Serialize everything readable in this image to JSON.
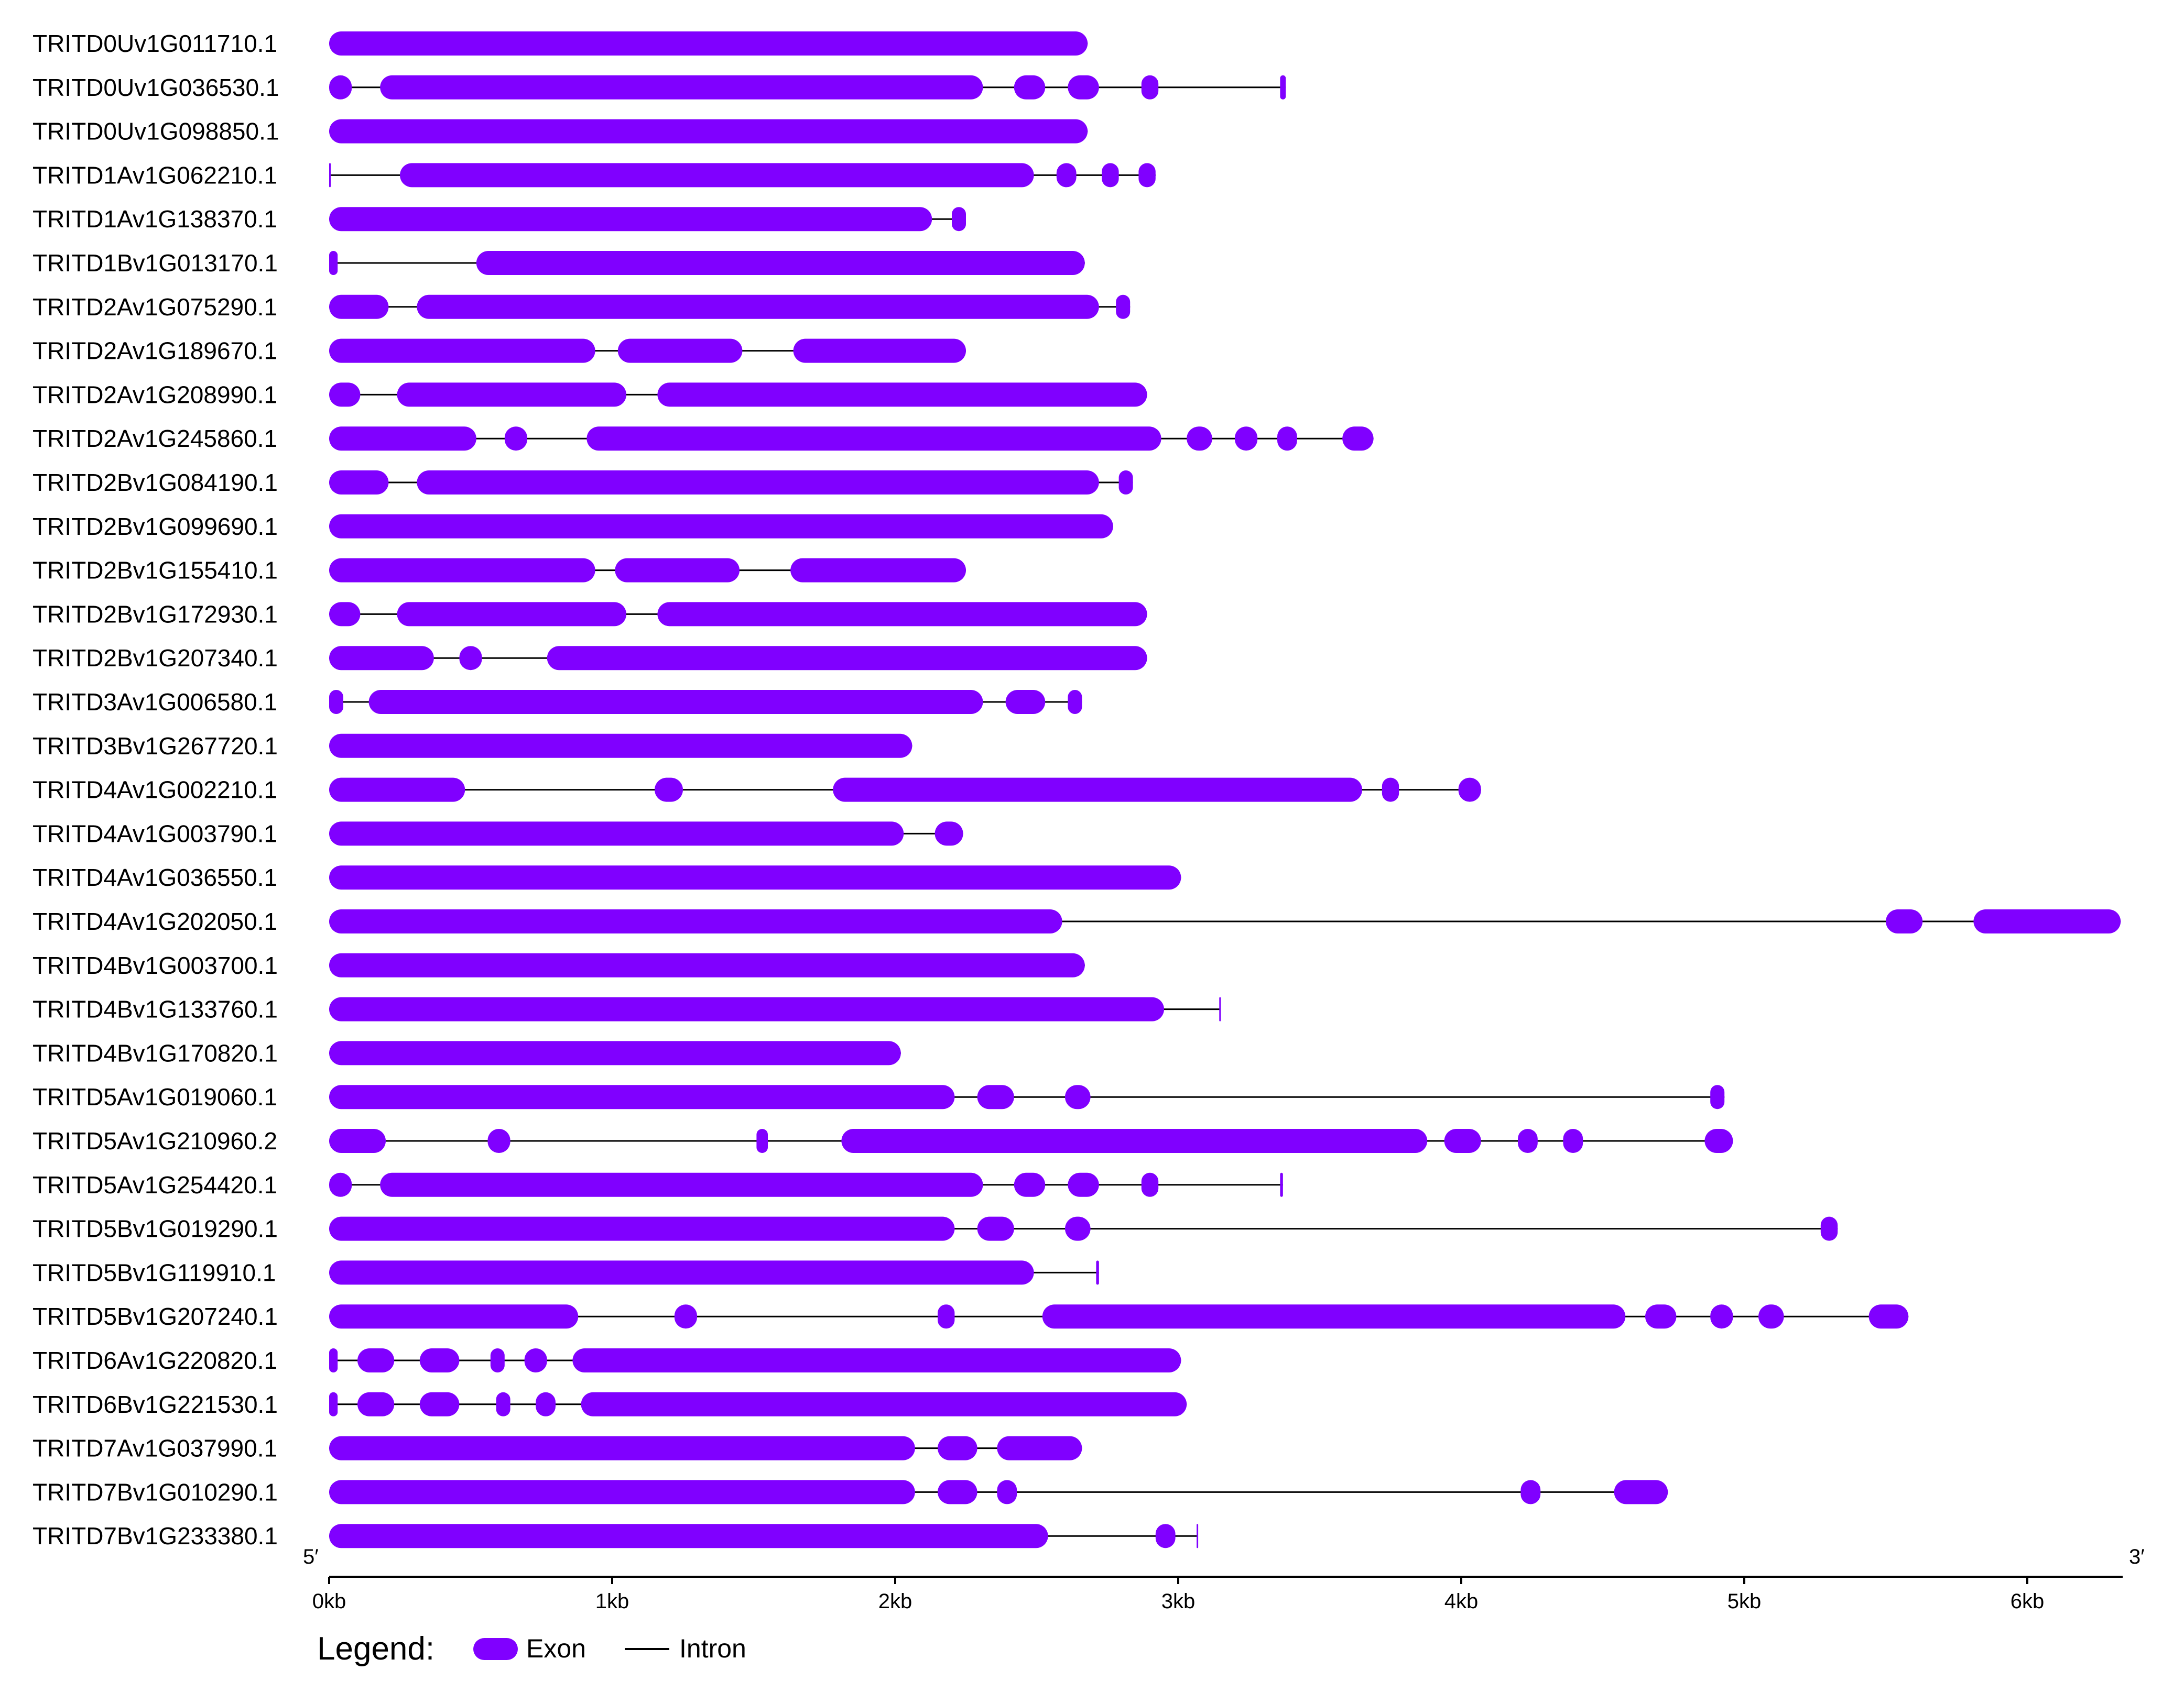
{
  "colors": {
    "exon": "#8000ff",
    "intron": "#000000"
  },
  "axis": {
    "unit": "kb",
    "xlim": [
      0,
      6.33
    ],
    "ticks": [
      0,
      1,
      2,
      3,
      4,
      5,
      6
    ],
    "tick_labels": [
      "0kb",
      "1kb",
      "2kb",
      "3kb",
      "4kb",
      "5kb",
      "6kb"
    ],
    "five_prime": "5′",
    "three_prime": "3′"
  },
  "legend": {
    "title": "Legend:",
    "exon": "Exon",
    "intron": "Intron"
  },
  "chart_data": {
    "type": "gene-structure",
    "x_unit": "kb",
    "genes": [
      {
        "name": "TRITD0Uv1G011710.1",
        "length": 2.68,
        "exons": [
          [
            0,
            2.68
          ]
        ]
      },
      {
        "name": "TRITD0Uv1G036530.1",
        "length": 3.38,
        "exons": [
          [
            0,
            0.08
          ],
          [
            0.18,
            2.31
          ],
          [
            2.42,
            2.53
          ],
          [
            2.61,
            2.72
          ],
          [
            2.87,
            2.93
          ],
          [
            3.36,
            3.38
          ]
        ]
      },
      {
        "name": "TRITD0Uv1G098850.1",
        "length": 2.68,
        "exons": [
          [
            0,
            2.68
          ]
        ]
      },
      {
        "name": "TRITD1Av1G062210.1",
        "length": 2.92,
        "exons": [
          [
            0,
            0.005
          ],
          [
            0.25,
            2.49
          ],
          [
            2.57,
            2.64
          ],
          [
            2.73,
            2.79
          ],
          [
            2.86,
            2.92
          ]
        ]
      },
      {
        "name": "TRITD1Av1G138370.1",
        "length": 2.25,
        "exons": [
          [
            0,
            2.13
          ],
          [
            2.2,
            2.25
          ]
        ]
      },
      {
        "name": "TRITD1Bv1G013170.1",
        "length": 2.67,
        "exons": [
          [
            0,
            0.03
          ],
          [
            0.52,
            2.67
          ]
        ]
      },
      {
        "name": "TRITD2Av1G075290.1",
        "length": 2.83,
        "exons": [
          [
            0,
            0.21
          ],
          [
            0.31,
            2.72
          ],
          [
            2.78,
            2.83
          ]
        ]
      },
      {
        "name": "TRITD2Av1G189670.1",
        "length": 2.25,
        "exons": [
          [
            0,
            0.94
          ],
          [
            1.02,
            1.46
          ],
          [
            1.64,
            2.25
          ]
        ]
      },
      {
        "name": "TRITD2Av1G208990.1",
        "length": 2.89,
        "exons": [
          [
            0,
            0.11
          ],
          [
            0.24,
            1.05
          ],
          [
            1.16,
            2.89
          ]
        ]
      },
      {
        "name": "TRITD2Av1G245860.1",
        "length": 3.69,
        "exons": [
          [
            0,
            0.52
          ],
          [
            0.62,
            0.7
          ],
          [
            0.91,
            2.94
          ],
          [
            3.03,
            3.12
          ],
          [
            3.2,
            3.28
          ],
          [
            3.35,
            3.42
          ],
          [
            3.58,
            3.69
          ]
        ]
      },
      {
        "name": "TRITD2Bv1G084190.1",
        "length": 2.84,
        "exons": [
          [
            0,
            0.21
          ],
          [
            0.31,
            2.72
          ],
          [
            2.79,
            2.84
          ]
        ]
      },
      {
        "name": "TRITD2Bv1G099690.1",
        "length": 2.77,
        "exons": [
          [
            0,
            2.77
          ]
        ]
      },
      {
        "name": "TRITD2Bv1G155410.1",
        "length": 2.25,
        "exons": [
          [
            0,
            0.94
          ],
          [
            1.01,
            1.45
          ],
          [
            1.63,
            2.25
          ]
        ]
      },
      {
        "name": "TRITD2Bv1G172930.1",
        "length": 2.89,
        "exons": [
          [
            0,
            0.11
          ],
          [
            0.24,
            1.05
          ],
          [
            1.16,
            2.89
          ]
        ]
      },
      {
        "name": "TRITD2Bv1G207340.1",
        "length": 2.89,
        "exons": [
          [
            0,
            0.37
          ],
          [
            0.46,
            0.54
          ],
          [
            0.77,
            2.89
          ]
        ]
      },
      {
        "name": "TRITD3Av1G006580.1",
        "length": 2.66,
        "exons": [
          [
            0,
            0.05
          ],
          [
            0.14,
            2.31
          ],
          [
            2.39,
            2.53
          ],
          [
            2.61,
            2.66
          ]
        ]
      },
      {
        "name": "TRITD3Bv1G267720.1",
        "length": 2.06,
        "exons": [
          [
            0,
            2.06
          ]
        ]
      },
      {
        "name": "TRITD4Av1G002210.1",
        "length": 4.07,
        "exons": [
          [
            0,
            0.48
          ],
          [
            1.15,
            1.25
          ],
          [
            1.78,
            3.65
          ],
          [
            3.72,
            3.78
          ],
          [
            3.99,
            4.07
          ]
        ]
      },
      {
        "name": "TRITD4Av1G003790.1",
        "length": 2.24,
        "exons": [
          [
            0,
            2.03
          ],
          [
            2.14,
            2.24
          ]
        ]
      },
      {
        "name": "TRITD4Av1G036550.1",
        "length": 3.01,
        "exons": [
          [
            0,
            3.01
          ]
        ]
      },
      {
        "name": "TRITD4Av1G202050.1",
        "length": 6.33,
        "exons": [
          [
            0,
            2.59
          ],
          [
            5.5,
            5.63
          ],
          [
            5.81,
            6.33
          ]
        ]
      },
      {
        "name": "TRITD4Bv1G003700.1",
        "length": 2.67,
        "exons": [
          [
            0,
            2.67
          ]
        ]
      },
      {
        "name": "TRITD4Bv1G133760.1",
        "length": 3.15,
        "exons": [
          [
            0,
            2.95
          ],
          [
            3.145,
            3.15
          ]
        ]
      },
      {
        "name": "TRITD4Bv1G170820.1",
        "length": 2.02,
        "exons": [
          [
            0,
            2.02
          ]
        ]
      },
      {
        "name": "TRITD5Av1G019060.1",
        "length": 4.93,
        "exons": [
          [
            0,
            2.21
          ],
          [
            2.29,
            2.42
          ],
          [
            2.6,
            2.69
          ],
          [
            4.88,
            4.93
          ]
        ]
      },
      {
        "name": "TRITD5Av1G210960.2",
        "length": 4.96,
        "exons": [
          [
            0,
            0.2
          ],
          [
            0.56,
            0.64
          ],
          [
            1.51,
            1.55
          ],
          [
            1.81,
            3.88
          ],
          [
            3.94,
            4.07
          ],
          [
            4.2,
            4.27
          ],
          [
            4.36,
            4.43
          ],
          [
            4.86,
            4.96
          ]
        ]
      },
      {
        "name": "TRITD5Av1G254420.1",
        "length": 3.37,
        "exons": [
          [
            0,
            0.08
          ],
          [
            0.18,
            2.31
          ],
          [
            2.42,
            2.53
          ],
          [
            2.61,
            2.72
          ],
          [
            2.87,
            2.93
          ],
          [
            3.36,
            3.37
          ]
        ]
      },
      {
        "name": "TRITD5Bv1G019290.1",
        "length": 5.33,
        "exons": [
          [
            0,
            2.21
          ],
          [
            2.29,
            2.42
          ],
          [
            2.6,
            2.69
          ],
          [
            5.27,
            5.33
          ]
        ]
      },
      {
        "name": "TRITD5Bv1G119910.1",
        "length": 2.72,
        "exons": [
          [
            0,
            2.49
          ],
          [
            2.71,
            2.72
          ]
        ]
      },
      {
        "name": "TRITD5Bv1G207240.1",
        "length": 5.58,
        "exons": [
          [
            0,
            0.88
          ],
          [
            1.22,
            1.3
          ],
          [
            2.15,
            2.21
          ],
          [
            2.52,
            4.58
          ],
          [
            4.65,
            4.76
          ],
          [
            4.88,
            4.96
          ],
          [
            5.05,
            5.14
          ],
          [
            5.44,
            5.58
          ]
        ]
      },
      {
        "name": "TRITD6Av1G220820.1",
        "length": 3.01,
        "exons": [
          [
            0,
            0.03
          ],
          [
            0.1,
            0.23
          ],
          [
            0.32,
            0.46
          ],
          [
            0.57,
            0.62
          ],
          [
            0.69,
            0.77
          ],
          [
            0.86,
            3.01
          ]
        ]
      },
      {
        "name": "TRITD6Bv1G221530.1",
        "length": 3.03,
        "exons": [
          [
            0,
            0.03
          ],
          [
            0.1,
            0.23
          ],
          [
            0.32,
            0.46
          ],
          [
            0.59,
            0.64
          ],
          [
            0.73,
            0.8
          ],
          [
            0.89,
            3.03
          ]
        ]
      },
      {
        "name": "TRITD7Av1G037990.1",
        "length": 2.66,
        "exons": [
          [
            0,
            2.07
          ],
          [
            2.15,
            2.29
          ],
          [
            2.36,
            2.66
          ]
        ]
      },
      {
        "name": "TRITD7Bv1G010290.1",
        "length": 4.73,
        "exons": [
          [
            0,
            2.07
          ],
          [
            2.15,
            2.29
          ],
          [
            2.36,
            2.43
          ],
          [
            4.21,
            4.28
          ],
          [
            4.54,
            4.73
          ]
        ]
      },
      {
        "name": "TRITD7Bv1G233380.1",
        "length": 3.07,
        "exons": [
          [
            0,
            2.54
          ],
          [
            2.92,
            2.99
          ],
          [
            3.065,
            3.07
          ]
        ]
      }
    ]
  }
}
